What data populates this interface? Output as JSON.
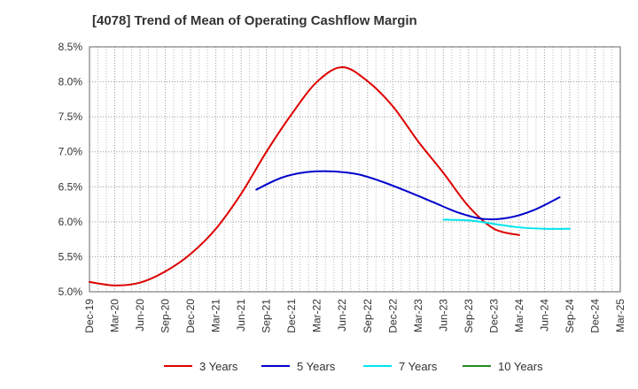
{
  "chart_data": {
    "type": "line",
    "title": "[4078]  Trend of Mean of Operating Cashflow Margin",
    "xlabel": "",
    "ylabel": "",
    "ylim": [
      5.0,
      8.5
    ],
    "grid": true,
    "legend_position": "bottom",
    "y_ticks": [
      5.0,
      5.5,
      6.0,
      6.5,
      7.0,
      7.5,
      8.0,
      8.5
    ],
    "y_tick_labels": [
      "5.0%",
      "5.5%",
      "6.0%",
      "6.5%",
      "7.0%",
      "7.5%",
      "8.0%",
      "8.5%"
    ],
    "x_tick_labels": [
      "Dec-19",
      "Mar-20",
      "Jun-20",
      "Sep-20",
      "Dec-20",
      "Mar-21",
      "Jun-21",
      "Sep-21",
      "Dec-21",
      "Mar-22",
      "Jun-22",
      "Sep-22",
      "Dec-22",
      "Mar-23",
      "Jun-23",
      "Sep-23",
      "Dec-23",
      "Mar-24",
      "Jun-24",
      "Sep-24",
      "Dec-24",
      "Mar-25"
    ],
    "series": [
      {
        "name": "3 Years",
        "color": "#dd0000",
        "start_index": 0,
        "values": [
          5.14,
          5.09,
          5.13,
          5.29,
          5.54,
          5.9,
          6.4,
          7.0,
          7.54,
          8.0,
          8.21,
          8.01,
          7.65,
          7.15,
          6.7,
          6.22,
          5.9,
          5.81
        ]
      },
      {
        "name": "5 Years",
        "color": "#0000cc",
        "start_index": 6.6,
        "values": [
          6.46,
          6.63,
          6.71,
          6.72,
          6.68,
          6.57,
          6.43,
          6.28,
          6.13,
          6.04,
          6.06,
          6.17,
          6.35
        ]
      },
      {
        "name": "7 Years",
        "color": "#00e5ee",
        "start_index": 14.0,
        "values": [
          6.03,
          6.02,
          5.97,
          5.92,
          5.9,
          5.9
        ]
      },
      {
        "name": "10 Years",
        "color": "#228b22",
        "start_index": 0,
        "values": []
      }
    ]
  }
}
